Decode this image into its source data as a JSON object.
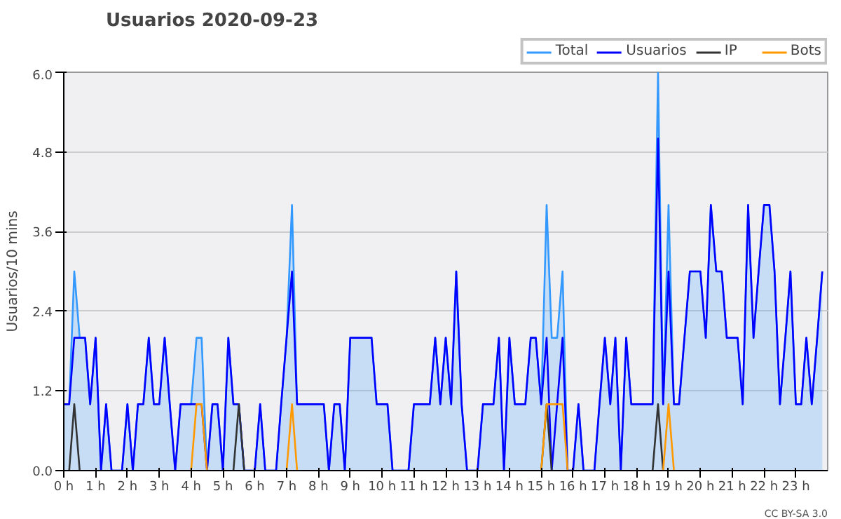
{
  "chart_data": {
    "type": "line",
    "title": "Usuarios  2020-09-23",
    "ylabel": "Usuarios/10 mins",
    "annotations": [
      "CC BY-SA 3.0"
    ],
    "x": [
      0,
      0.17,
      0.33,
      0.5,
      0.67,
      0.83,
      1,
      1.17,
      1.33,
      1.5,
      1.67,
      1.83,
      2,
      2.17,
      2.33,
      2.5,
      2.67,
      2.83,
      3,
      3.17,
      3.33,
      3.5,
      3.67,
      3.83,
      4,
      4.17,
      4.33,
      4.5,
      4.67,
      4.83,
      5,
      5.17,
      5.33,
      5.5,
      5.67,
      5.83,
      6,
      6.17,
      6.33,
      6.5,
      6.67,
      6.83,
      7,
      7.17,
      7.33,
      7.5,
      7.67,
      7.83,
      8,
      8.17,
      8.33,
      8.5,
      8.67,
      8.83,
      9,
      9.17,
      9.33,
      9.5,
      9.67,
      9.83,
      10,
      10.17,
      10.33,
      10.5,
      10.67,
      10.83,
      11,
      11.17,
      11.33,
      11.5,
      11.67,
      11.83,
      12,
      12.17,
      12.33,
      12.5,
      12.67,
      12.83,
      13,
      13.17,
      13.33,
      13.5,
      13.67,
      13.83,
      14,
      14.17,
      14.33,
      14.5,
      14.67,
      14.83,
      15,
      15.17,
      15.33,
      15.5,
      15.67,
      15.83,
      16,
      16.17,
      16.33,
      16.5,
      16.67,
      16.83,
      17,
      17.17,
      17.33,
      17.5,
      17.67,
      17.83,
      18,
      18.17,
      18.33,
      18.5,
      18.67,
      18.83,
      19,
      19.17,
      19.33,
      19.5,
      19.67,
      19.83,
      20,
      20.17,
      20.33,
      20.5,
      20.67,
      20.83,
      21,
      21.17,
      21.33,
      21.5,
      21.67,
      21.83,
      22,
      22.17,
      22.33,
      22.5,
      22.67,
      22.83,
      23,
      23.17,
      23.33,
      23.5,
      23.67,
      23.83
    ],
    "xlim": [
      0,
      24
    ],
    "xticks": [
      {
        "value": 0,
        "label": "0 h"
      },
      {
        "value": 1,
        "label": "1 h"
      },
      {
        "value": 2,
        "label": "2 h"
      },
      {
        "value": 3,
        "label": "3 h"
      },
      {
        "value": 4,
        "label": "4 h"
      },
      {
        "value": 5,
        "label": "5 h"
      },
      {
        "value": 6,
        "label": "6 h"
      },
      {
        "value": 7,
        "label": "7 h"
      },
      {
        "value": 8,
        "label": "8 h"
      },
      {
        "value": 9,
        "label": "9 h"
      },
      {
        "value": 10,
        "label": "10 h"
      },
      {
        "value": 11,
        "label": "11 h"
      },
      {
        "value": 12,
        "label": "12 h"
      },
      {
        "value": 13,
        "label": "13 h"
      },
      {
        "value": 14,
        "label": "14 h"
      },
      {
        "value": 15,
        "label": "15 h"
      },
      {
        "value": 16,
        "label": "16 h"
      },
      {
        "value": 17,
        "label": "17 h"
      },
      {
        "value": 18,
        "label": "18 h"
      },
      {
        "value": 19,
        "label": "19 h"
      },
      {
        "value": 20,
        "label": "20 h"
      },
      {
        "value": 21,
        "label": "21 h"
      },
      {
        "value": 22,
        "label": "22 h"
      },
      {
        "value": 23,
        "label": "23 h"
      }
    ],
    "ylim": [
      0,
      6
    ],
    "yticks": [
      {
        "value": 0,
        "label": "0.0"
      },
      1.2,
      2.4,
      3.6,
      4.8,
      {
        "value": 6,
        "label": "6.0"
      }
    ],
    "grid": "y",
    "legend": "top right",
    "marker": "none",
    "line_style": "solid",
    "series": [
      {
        "name": "Total",
        "type": "area",
        "color": "#3399ff",
        "values": [
          1,
          1,
          3,
          2,
          2,
          1,
          2,
          0,
          1,
          0,
          0,
          0,
          1,
          0,
          1,
          1,
          2,
          1,
          1,
          2,
          1,
          0,
          1,
          1,
          1,
          2,
          2,
          0,
          1,
          1,
          0,
          2,
          1,
          1,
          0,
          0,
          0,
          1,
          0,
          0,
          0,
          1,
          2,
          4,
          1,
          1,
          1,
          1,
          1,
          1,
          0,
          1,
          1,
          0,
          2,
          2,
          2,
          2,
          2,
          1,
          1,
          1,
          0,
          0,
          0,
          0,
          1,
          1,
          1,
          1,
          2,
          1,
          2,
          1,
          3,
          1,
          0,
          0,
          0,
          1,
          1,
          1,
          2,
          0,
          2,
          1,
          1,
          1,
          2,
          2,
          1,
          4,
          2,
          2,
          3,
          0,
          0,
          1,
          0,
          0,
          0,
          1,
          2,
          1,
          2,
          0,
          2,
          1,
          1,
          1,
          1,
          1,
          6,
          1,
          4,
          1,
          1,
          2,
          3,
          3,
          3,
          2,
          4,
          3,
          3,
          2,
          2,
          2,
          1,
          4,
          2,
          3,
          4,
          4,
          3,
          1,
          2,
          3,
          1,
          1,
          2,
          1,
          2,
          3
        ]
      },
      {
        "name": "Usuarios",
        "color": "#0000ff",
        "values": [
          1,
          1,
          2,
          2,
          2,
          1,
          2,
          0,
          1,
          0,
          0,
          0,
          1,
          0,
          1,
          1,
          2,
          1,
          1,
          2,
          1,
          0,
          1,
          1,
          1,
          1,
          1,
          0,
          1,
          1,
          0,
          2,
          1,
          1,
          0,
          0,
          0,
          1,
          0,
          0,
          0,
          1,
          2,
          3,
          1,
          1,
          1,
          1,
          1,
          1,
          0,
          1,
          1,
          0,
          2,
          2,
          2,
          2,
          2,
          1,
          1,
          1,
          0,
          0,
          0,
          0,
          1,
          1,
          1,
          1,
          2,
          1,
          2,
          1,
          3,
          1,
          0,
          0,
          0,
          1,
          1,
          1,
          2,
          0,
          2,
          1,
          1,
          1,
          2,
          2,
          1,
          2,
          0,
          1,
          2,
          0,
          0,
          1,
          0,
          0,
          0,
          1,
          2,
          1,
          2,
          0,
          2,
          1,
          1,
          1,
          1,
          1,
          5,
          1,
          3,
          1,
          1,
          2,
          3,
          3,
          3,
          2,
          4,
          3,
          3,
          2,
          2,
          2,
          1,
          4,
          2,
          3,
          4,
          4,
          3,
          1,
          2,
          3,
          1,
          1,
          2,
          1,
          2,
          3
        ]
      },
      {
        "name": "IP",
        "color": "#333333",
        "values": [
          null,
          0,
          1,
          0,
          null,
          null,
          null,
          null,
          null,
          null,
          null,
          null,
          null,
          null,
          null,
          null,
          null,
          null,
          null,
          null,
          null,
          null,
          null,
          null,
          null,
          null,
          null,
          null,
          null,
          null,
          null,
          null,
          0,
          1,
          0,
          null,
          null,
          null,
          null,
          null,
          null,
          null,
          null,
          null,
          null,
          null,
          null,
          null,
          null,
          null,
          null,
          null,
          null,
          null,
          null,
          null,
          null,
          null,
          null,
          null,
          null,
          null,
          null,
          null,
          null,
          null,
          null,
          null,
          null,
          null,
          null,
          null,
          null,
          null,
          null,
          null,
          null,
          null,
          null,
          null,
          null,
          null,
          null,
          null,
          null,
          null,
          null,
          null,
          null,
          null,
          0,
          1,
          0,
          null,
          null,
          null,
          null,
          null,
          null,
          null,
          null,
          null,
          null,
          null,
          null,
          null,
          null,
          null,
          null,
          null,
          null,
          0,
          1,
          0,
          null,
          null,
          null,
          null,
          null,
          null,
          null,
          null,
          null,
          null,
          null,
          null,
          null,
          null,
          null,
          null,
          null,
          null,
          null,
          null,
          null,
          null,
          null,
          null,
          null,
          null,
          null,
          null,
          null,
          null
        ]
      },
      {
        "name": "Bots",
        "color": "#ff9900",
        "values": [
          null,
          null,
          null,
          null,
          null,
          null,
          null,
          null,
          null,
          null,
          null,
          null,
          null,
          null,
          null,
          null,
          null,
          null,
          null,
          null,
          null,
          null,
          null,
          null,
          0,
          1,
          1,
          0,
          null,
          null,
          null,
          null,
          null,
          null,
          null,
          null,
          null,
          null,
          null,
          null,
          null,
          null,
          0,
          1,
          0,
          null,
          null,
          null,
          null,
          null,
          null,
          null,
          null,
          null,
          null,
          null,
          null,
          null,
          null,
          null,
          null,
          null,
          null,
          null,
          null,
          null,
          null,
          null,
          null,
          null,
          null,
          null,
          null,
          null,
          null,
          null,
          null,
          null,
          null,
          null,
          null,
          null,
          null,
          null,
          null,
          null,
          null,
          null,
          null,
          null,
          0,
          1,
          1,
          1,
          1,
          0,
          null,
          null,
          null,
          null,
          null,
          null,
          null,
          null,
          null,
          null,
          null,
          null,
          null,
          null,
          null,
          null,
          null,
          0,
          1,
          0,
          null,
          null,
          null,
          null,
          null,
          null,
          null,
          null,
          null,
          null,
          null,
          null,
          null,
          null,
          null,
          null,
          null,
          null,
          null,
          null,
          null,
          null,
          null,
          null,
          null,
          null,
          null,
          null
        ]
      }
    ]
  }
}
